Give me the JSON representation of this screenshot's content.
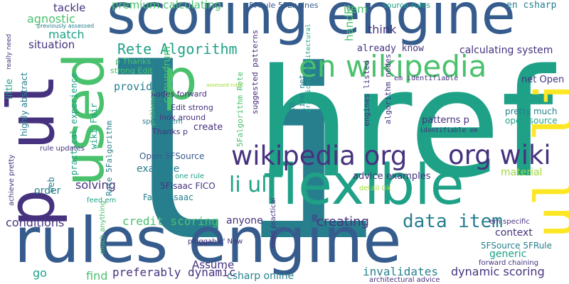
{
  "palette": {
    "background": "#ffffff",
    "colors": [
      "#440154",
      "#46327e",
      "#365c8d",
      "#277f8e",
      "#1fa187",
      "#4ac16d",
      "#a0da39",
      "#fde725"
    ]
  },
  "words": [
    {
      "text": "li",
      "color": "#277f8e"
    },
    {
      "text": "href",
      "color": "#1fa187"
    },
    {
      "text": "scoring engine",
      "color": "#365c8d"
    },
    {
      "text": "rules engine",
      "color": "#365c8d"
    },
    {
      "text": "flexible",
      "color": "#1fa187"
    },
    {
      "text": "p ul",
      "color": "#46327e"
    },
    {
      "text": "ul li",
      "color": "#fde725"
    },
    {
      "text": "used",
      "color": "#4ac16d"
    },
    {
      "text": "p",
      "color": "#4ac16d"
    },
    {
      "text": "en wikipedia",
      "color": "#4ac16d"
    },
    {
      "text": "wikipedia org",
      "color": "#46327e"
    },
    {
      "text": "org wiki",
      "color": "#46327e"
    },
    {
      "text": "li ul",
      "color": "#1fa187"
    },
    {
      "text": "data item",
      "color": "#277f8e"
    },
    {
      "text": "Rete Algorithm",
      "color": "#1fa187"
    },
    {
      "text": "credit scoring",
      "color": "#4ac16d"
    },
    {
      "text": "creating",
      "color": "#46327e"
    },
    {
      "text": "preferably dynamic",
      "color": "#46327e"
    },
    {
      "text": "invalidates",
      "color": "#277f8e"
    },
    {
      "text": "dynamic scoring",
      "color": "#46327e"
    },
    {
      "text": "premium calculating",
      "color": "#4ac16d"
    },
    {
      "text": "5FRule 5FEngines",
      "color": "#365c8d"
    },
    {
      "text": "source rules",
      "color": "#1fa187"
    },
    {
      "text": "en csharp",
      "color": "#277f8e"
    },
    {
      "text": "tackle",
      "color": "#46327e"
    },
    {
      "text": "agnostic",
      "color": "#4ac16d"
    },
    {
      "text": "match",
      "color": "#1fa187"
    },
    {
      "text": "situation",
      "color": "#46327e"
    },
    {
      "text": "item",
      "color": "#4ac16d"
    },
    {
      "text": "think",
      "color": "#46327e"
    },
    {
      "text": "handle",
      "color": "#4ac16d"
    },
    {
      "text": "already know",
      "color": "#46327e"
    },
    {
      "text": "calculating system",
      "color": "#46327e"
    },
    {
      "text": "provide",
      "color": "#277f8e"
    },
    {
      "text": "conundrum",
      "color": "#4ac16d"
    },
    {
      "text": "net Open",
      "color": "#46327e"
    },
    {
      "text": "pretty much",
      "color": "#277f8e"
    },
    {
      "text": "open source",
      "color": "#1fa187"
    },
    {
      "text": "Open 5FSource",
      "color": "#365c8d"
    },
    {
      "text": "5FIsaac FICO",
      "color": "#46327e"
    },
    {
      "text": "Fair 5FIsaac",
      "color": "#277f8e"
    },
    {
      "text": "example",
      "color": "#277f8e"
    },
    {
      "text": "solving",
      "color": "#46327e"
    },
    {
      "text": "order",
      "color": "#277f8e"
    },
    {
      "text": "create",
      "color": "#46327e"
    },
    {
      "text": "material",
      "color": "#a0da39"
    },
    {
      "text": "advice examples",
      "color": "#46327e"
    },
    {
      "text": "conditions",
      "color": "#46327e"
    },
    {
      "text": "anyone",
      "color": "#46327e"
    },
    {
      "text": "context",
      "color": "#46327e"
    },
    {
      "text": "generic",
      "color": "#1fa187"
    },
    {
      "text": "5FSource 5FRule",
      "color": "#277f8e"
    },
    {
      "text": "Assume",
      "color": "#46327e"
    },
    {
      "text": "go",
      "color": "#1fa187"
    },
    {
      "text": "find",
      "color": "#4ac16d"
    },
    {
      "text": "csharp online",
      "color": "#277f8e"
    },
    {
      "text": "little",
      "color": "#1fa187"
    },
    {
      "text": "highly abstract",
      "color": "#277f8e"
    },
    {
      "text": "practical experience",
      "color": "#1fa187"
    },
    {
      "text": "web",
      "color": "#277f8e"
    },
    {
      "text": "wiki Fair",
      "color": "#1fa187"
    },
    {
      "text": "Rete 5Falgorithm",
      "color": "#277f8e"
    },
    {
      "text": "5Falgorithm Rete",
      "color": "#4ac16d"
    },
    {
      "text": "suggested patterns",
      "color": "#46327e"
    },
    {
      "text": "online net",
      "color": "#277f8e"
    },
    {
      "text": "practical architectural",
      "color": "#1fa187"
    },
    {
      "text": "engines listed",
      "color": "#46327e"
    },
    {
      "text": "algorithm nodes",
      "color": "#46327e"
    },
    {
      "text": "use",
      "color": "#277f8e"
    },
    {
      "text": "patterns p",
      "color": "#46327e"
    },
    {
      "text": "p Thanks",
      "color": "#4ac16d"
    },
    {
      "text": "strong Edit",
      "color": "#4ac16d"
    },
    {
      "text": "nodes forward",
      "color": "#46327e"
    },
    {
      "text": "Edit strong",
      "color": "#46327e"
    },
    {
      "text": "look around",
      "color": "#46327e"
    },
    {
      "text": "Thanks p",
      "color": "#46327e"
    },
    {
      "text": "specific em",
      "color": "#277f8e"
    },
    {
      "text": "problems p",
      "color": "#4ac16d"
    },
    {
      "text": "em identifiable",
      "color": "#46327e"
    },
    {
      "text": "identifiable em",
      "color": "#46327e"
    },
    {
      "text": "previously assessed",
      "color": "#277f8e"
    },
    {
      "text": "really need",
      "color": "#46327e"
    },
    {
      "text": "achieve pretty",
      "color": "#46327e"
    },
    {
      "text": "rule updates",
      "color": "#46327e"
    },
    {
      "text": "one rule",
      "color": "#1fa187"
    },
    {
      "text": "detail Ok",
      "color": "#a0da39"
    },
    {
      "text": "feed em",
      "color": "#1fa187"
    },
    {
      "text": "much anything",
      "color": "#4ac16d"
    },
    {
      "text": "pluggable' Now",
      "color": "#46327e"
    },
    {
      "text": "need practical",
      "color": "#46327e"
    },
    {
      "text": "em specific",
      "color": "#46327e"
    },
    {
      "text": "forward chaining",
      "color": "#46327e"
    },
    {
      "text": "architectural advice",
      "color": "#46327e"
    },
    {
      "text": "assessed rules",
      "color": "#a0da39"
    }
  ]
}
